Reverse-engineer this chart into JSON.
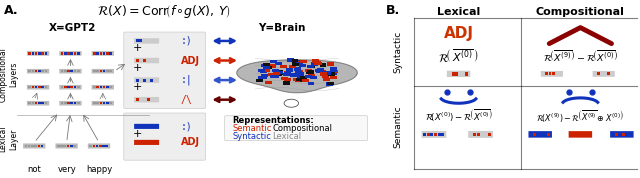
{
  "title_A": "A.",
  "title_B": "B.",
  "label_xgpt2": "X=GPT2",
  "label_ybrain": "Y=Brain",
  "label_comp_layers": "Compositional\nLayers",
  "label_lex_layer": "Lexical\nLayer",
  "words": [
    "not",
    "very",
    "happy"
  ],
  "col_header_lexical": "Lexical",
  "col_header_compositional": "Compositional",
  "row_header_syntactic": "Syntactic",
  "row_header_semantic": "Semantic",
  "red_color": "#CC2200",
  "blue_color": "#1133BB",
  "darkred_color": "#8B0000",
  "gray_color": "#888888",
  "bg_color": "#FFFFFF",
  "brain_gray": "#AAAAAA"
}
